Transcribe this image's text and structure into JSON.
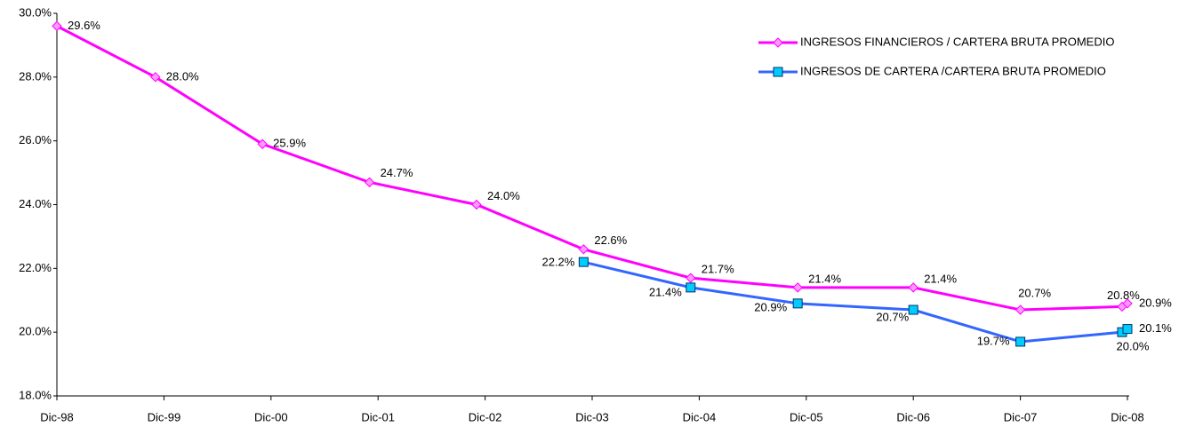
{
  "chart_data": {
    "type": "line",
    "x": [
      1998,
      1998.92,
      1999.92,
      2000.92,
      2001.92,
      2002.92,
      2003.92,
      2004.92,
      2006,
      2007,
      2007.95,
      2008
    ],
    "xlim": [
      1998,
      2008
    ],
    "xticks": [
      {
        "value": 1998,
        "label": "Dic-98"
      },
      {
        "value": 1999,
        "label": "Dic-99"
      },
      {
        "value": 2000,
        "label": "Dic-00"
      },
      {
        "value": 2001,
        "label": "Dic-01"
      },
      {
        "value": 2002,
        "label": "Dic-02"
      },
      {
        "value": 2003,
        "label": "Dic-03"
      },
      {
        "value": 2004,
        "label": "Dic-04"
      },
      {
        "value": 2005,
        "label": "Dic-05"
      },
      {
        "value": 2006,
        "label": "Dic-06"
      },
      {
        "value": 2007,
        "label": "Dic-07"
      },
      {
        "value": 2008,
        "label": "Dic-08"
      }
    ],
    "ylim": [
      18,
      30
    ],
    "yticks": [
      {
        "value": 18,
        "label": "18.0%"
      },
      {
        "value": 20,
        "label": "20.0%"
      },
      {
        "value": 22,
        "label": "22.0%"
      },
      {
        "value": 24,
        "label": "24.0%"
      },
      {
        "value": 26,
        "label": "26.0%"
      },
      {
        "value": 28,
        "label": "28.0%"
      },
      {
        "value": 30,
        "label": "30.0%"
      }
    ],
    "grid": false,
    "legend": "top-right",
    "series": [
      {
        "name": "INGRESOS FINANCIEROS / CARTERA BRUTA PROMEDIO",
        "color": "#ff00ff",
        "marker": "diamond",
        "marker_color": "#ff99ff",
        "values": [
          29.6,
          28.0,
          25.9,
          24.7,
          24.0,
          22.6,
          21.7,
          21.4,
          21.4,
          20.7,
          20.8,
          20.9
        ],
        "value_labels": [
          "29.6%",
          "28.0%",
          "25.9%",
          "24.7%",
          "24.0%",
          "22.6%",
          "21.7%",
          "21.4%",
          "21.4%",
          "20.7%",
          "20.8%",
          "20.9%"
        ]
      },
      {
        "name": "INGRESOS DE CARTERA /CARTERA BRUTA PROMEDIO",
        "color": "#3366ff",
        "marker": "square",
        "marker_color": "#00ccff",
        "values": [
          null,
          null,
          null,
          null,
          null,
          22.2,
          21.4,
          20.9,
          20.7,
          19.7,
          20.0,
          20.1
        ],
        "value_labels": [
          null,
          null,
          null,
          null,
          null,
          "22.2%",
          "21.4%",
          "20.9%",
          "20.7%",
          "19.7%",
          "20.0%",
          "20.1%"
        ]
      }
    ]
  }
}
